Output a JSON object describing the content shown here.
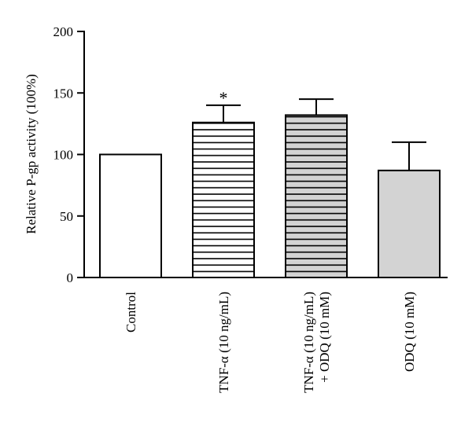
{
  "chart_data": {
    "type": "bar",
    "ylabel": "Relative P-gp activity (100%)",
    "xlabel": "",
    "ylim": [
      0,
      200
    ],
    "yticks": [
      0,
      50,
      100,
      150,
      200
    ],
    "categories": [
      {
        "lines": [
          "Control"
        ]
      },
      {
        "lines": [
          "TNF-α (10 ng/mL)"
        ]
      },
      {
        "lines": [
          "TNF-α (10 ng/mL)",
          "+ ODQ (10 mM)"
        ]
      },
      {
        "lines": [
          "ODQ (10 mM)"
        ]
      }
    ],
    "values": [
      100,
      126,
      132,
      87
    ],
    "errors": [
      0,
      14,
      13,
      23
    ],
    "annotations": [
      "",
      "*",
      "",
      ""
    ],
    "fills": [
      {
        "pattern": "none",
        "color": "#ffffff"
      },
      {
        "pattern": "horizontal-lines",
        "color": "#ffffff"
      },
      {
        "pattern": "horizontal-lines",
        "color": "#d3d3d3"
      },
      {
        "pattern": "none",
        "color": "#d3d3d3"
      }
    ],
    "grid": false,
    "legend": "none"
  }
}
